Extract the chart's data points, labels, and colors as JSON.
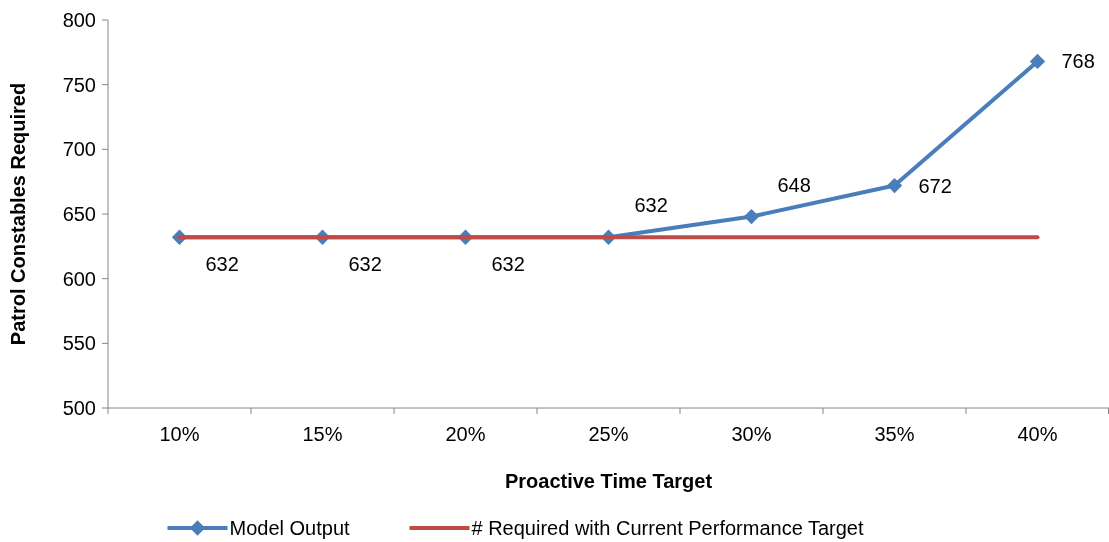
{
  "chart_data": {
    "type": "line",
    "xlabel": "Proactive Time Target",
    "ylabel": "Patrol Constables Required",
    "categories": [
      "10%",
      "15%",
      "20%",
      "25%",
      "30%",
      "35%",
      "40%"
    ],
    "series": [
      {
        "name": "Model Output",
        "color": "#4a7ebb",
        "marker": "diamond",
        "values": [
          632,
          632,
          632,
          632,
          648,
          672,
          768
        ],
        "value_labels": [
          "632",
          "632",
          "632",
          "632",
          "648",
          "672",
          "768"
        ]
      },
      {
        "name": "# Required with Current Performance Target",
        "color": "#be4b48",
        "marker": "none",
        "values": [
          632,
          632,
          632,
          632,
          632,
          632,
          632
        ]
      }
    ],
    "ylim": [
      500,
      800
    ],
    "yticks": [
      500,
      550,
      600,
      650,
      700,
      750,
      800
    ],
    "grid": false,
    "legend": "bottom"
  }
}
